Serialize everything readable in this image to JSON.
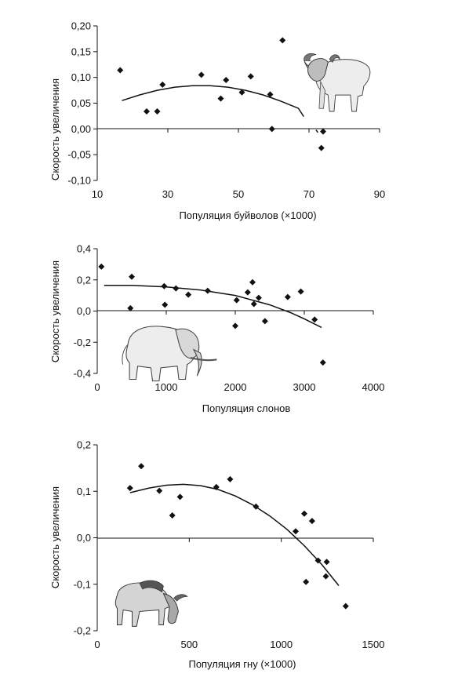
{
  "chart_data": [
    {
      "type": "scatter",
      "title": "",
      "xlabel": "Популяция буйволов (×1000)",
      "ylabel": "Скорость увеличения",
      "xlim": [
        10,
        90
      ],
      "ylim": [
        -0.1,
        0.2
      ],
      "xticks": [
        "10",
        "30",
        "50",
        "70",
        "90"
      ],
      "yticks": [
        "0,20",
        "0,15",
        "0,10",
        "0,05",
        "0,00",
        "-0,05",
        "-0,10"
      ],
      "picture_icon": "buffalo-illustration",
      "points": [
        [
          16.5,
          0.114
        ],
        [
          24,
          0.034
        ],
        [
          27,
          0.034
        ],
        [
          28.5,
          0.086
        ],
        [
          39.5,
          0.105
        ],
        [
          45,
          0.059
        ],
        [
          46.5,
          0.095
        ],
        [
          51,
          0.071
        ],
        [
          53.5,
          0.102
        ],
        [
          59,
          0.067
        ],
        [
          59.5,
          0.0
        ],
        [
          62.5,
          0.172
        ],
        [
          73.5,
          -0.037
        ],
        [
          74,
          -0.005
        ]
      ],
      "fit": [
        [
          17,
          0.055
        ],
        [
          22,
          0.066
        ],
        [
          27,
          0.075
        ],
        [
          32,
          0.081
        ],
        [
          37,
          0.084
        ],
        [
          42,
          0.084
        ],
        [
          47,
          0.081
        ],
        [
          52,
          0.075
        ],
        [
          57,
          0.066
        ],
        [
          62,
          0.054
        ],
        [
          67,
          0.04
        ],
        [
          68.5,
          0.024
        ]
      ],
      "fit_tail": [
        [
          72,
          -0.002
        ],
        [
          72.5,
          -0.007
        ]
      ]
    },
    {
      "type": "scatter",
      "title": "",
      "xlabel": "Популяция слонов",
      "ylabel": "Скорость увеличения",
      "xlim": [
        0,
        4000
      ],
      "ylim": [
        -0.4,
        0.4
      ],
      "xticks": [
        "0",
        "1000",
        "2000",
        "3000",
        "4000"
      ],
      "yticks": [
        "0,4",
        "0,2",
        "0,0",
        "-0,2",
        "-0,4"
      ],
      "picture_icon": "elephant-illustration",
      "points": [
        [
          60,
          0.285
        ],
        [
          480,
          0.018
        ],
        [
          500,
          0.22
        ],
        [
          970,
          0.16
        ],
        [
          980,
          0.04
        ],
        [
          1140,
          0.145
        ],
        [
          1320,
          0.105
        ],
        [
          1600,
          0.13
        ],
        [
          2000,
          -0.095
        ],
        [
          2020,
          0.07
        ],
        [
          2180,
          0.12
        ],
        [
          2250,
          0.185
        ],
        [
          2270,
          0.045
        ],
        [
          2340,
          0.085
        ],
        [
          2430,
          -0.065
        ],
        [
          2760,
          0.09
        ],
        [
          2950,
          0.125
        ],
        [
          3150,
          -0.055
        ],
        [
          3270,
          -0.33
        ]
      ],
      "fit": [
        [
          100,
          0.165
        ],
        [
          500,
          0.165
        ],
        [
          1000,
          0.155
        ],
        [
          1500,
          0.135
        ],
        [
          2000,
          0.1
        ],
        [
          2500,
          0.04
        ],
        [
          2800,
          -0.01
        ],
        [
          3000,
          -0.05
        ],
        [
          3250,
          -0.105
        ]
      ]
    },
    {
      "type": "scatter",
      "title": "",
      "xlabel": "Популяция гну (×1000)",
      "ylabel": "Скорость увеличения",
      "xlim": [
        0,
        1600
      ],
      "ylim": [
        -0.2,
        0.2
      ],
      "xticks": [
        "0",
        "500",
        "1000",
        "1500"
      ],
      "yticks": [
        "0,2",
        "0,1",
        "0,0",
        "-0,1",
        "-0,2"
      ],
      "picture_icon": "wildebeest-illustration",
      "points": [
        [
          190,
          0.107
        ],
        [
          255,
          0.154
        ],
        [
          360,
          0.101
        ],
        [
          435,
          0.048
        ],
        [
          480,
          0.088
        ],
        [
          690,
          0.109
        ],
        [
          770,
          0.126
        ],
        [
          920,
          0.067
        ],
        [
          1150,
          0.014
        ],
        [
          1200,
          0.052
        ],
        [
          1210,
          -0.095
        ],
        [
          1245,
          0.036
        ],
        [
          1280,
          -0.049
        ],
        [
          1325,
          -0.083
        ],
        [
          1330,
          -0.052
        ],
        [
          1440,
          -0.147
        ]
      ],
      "fit": [
        [
          190,
          0.097
        ],
        [
          300,
          0.107
        ],
        [
          400,
          0.113
        ],
        [
          500,
          0.115
        ],
        [
          600,
          0.112
        ],
        [
          700,
          0.104
        ],
        [
          800,
          0.09
        ],
        [
          900,
          0.071
        ],
        [
          1000,
          0.047
        ],
        [
          1100,
          0.018
        ],
        [
          1200,
          -0.017
        ],
        [
          1300,
          -0.057
        ],
        [
          1400,
          -0.103
        ]
      ]
    }
  ]
}
